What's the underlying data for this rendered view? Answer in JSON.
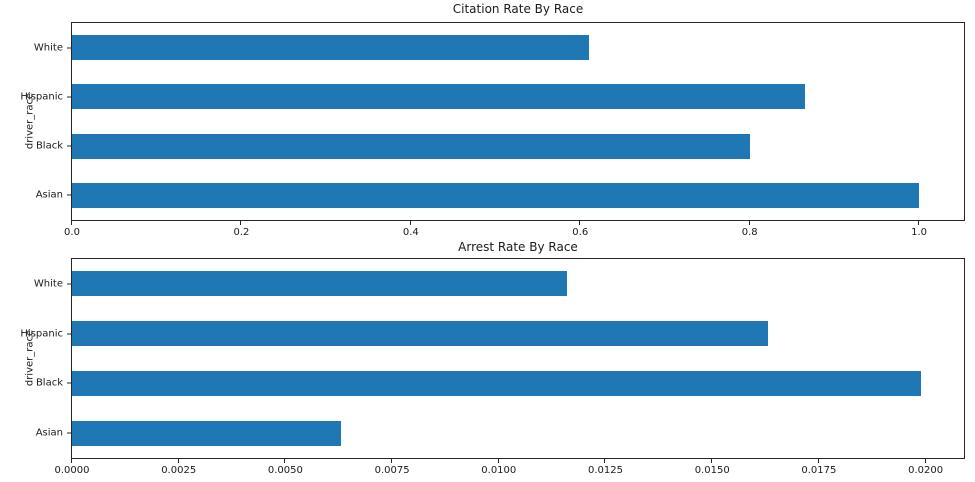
{
  "figure": {
    "background_color": "#ffffff",
    "bar_color": "#1f77b4",
    "spine_color": "#262626",
    "text_color": "#1a1a1a"
  },
  "chart_data": [
    {
      "type": "bar",
      "orientation": "horizontal",
      "title": "Citation Rate By Race",
      "xlabel": "",
      "ylabel": "driver_race",
      "grid": false,
      "legend": null,
      "categories": [
        "White",
        "Hispanic",
        "Black",
        "Asian"
      ],
      "values": [
        0.61,
        0.865,
        0.8,
        1.0
      ],
      "xlim": [
        0,
        1.053
      ],
      "xtick_values": [
        0.0,
        0.2,
        0.4,
        0.6,
        0.8,
        1.0
      ],
      "xtick_labels": [
        "0.0",
        "0.2",
        "0.4",
        "0.6",
        "0.8",
        "1.0"
      ]
    },
    {
      "type": "bar",
      "orientation": "horizontal",
      "title": "Arrest Rate By Race",
      "xlabel": "",
      "ylabel": "driver_race",
      "grid": false,
      "legend": null,
      "categories": [
        "White",
        "Hispanic",
        "Black",
        "Asian"
      ],
      "values": [
        0.0116,
        0.0163,
        0.0199,
        0.0063
      ],
      "xlim": [
        0,
        0.0209
      ],
      "xtick_values": [
        0.0,
        0.0025,
        0.005,
        0.0075,
        0.01,
        0.0125,
        0.015,
        0.0175,
        0.02
      ],
      "xtick_labels": [
        "0.0000",
        "0.0025",
        "0.0050",
        "0.0075",
        "0.0100",
        "0.0125",
        "0.0150",
        "0.0175",
        "0.0200"
      ]
    }
  ]
}
